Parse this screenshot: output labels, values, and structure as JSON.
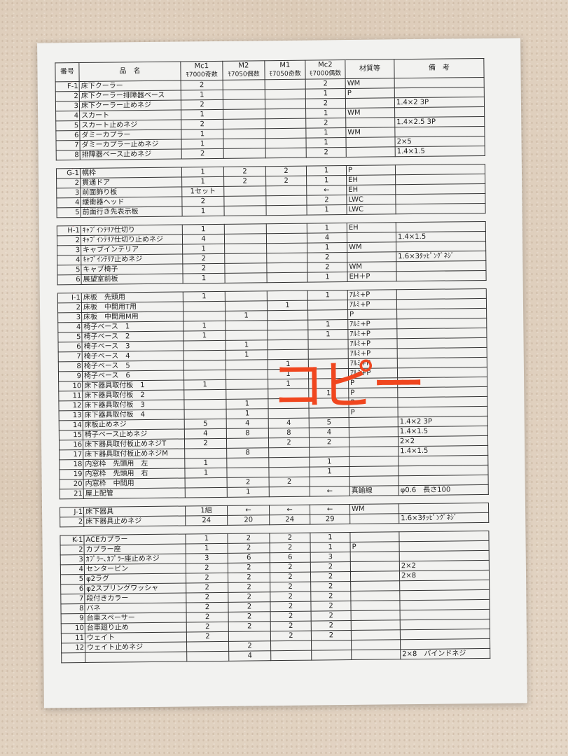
{
  "header": {
    "no": "番号",
    "name": "品　名",
    "cols": [
      {
        "a": "Mc1",
        "b": "ﾓ7000奇数"
      },
      {
        "a": "M2",
        "b": "ﾓ7050偶数"
      },
      {
        "a": "M1",
        "b": "ﾓ7050奇数"
      },
      {
        "a": "Mc2",
        "b": "ﾓ7000偶数"
      }
    ],
    "material": "材質等",
    "remarks": "備　考"
  },
  "sections": [
    {
      "rows": [
        [
          "F-1",
          "床下クーラー",
          "2",
          "",
          "",
          "2",
          "WM",
          ""
        ],
        [
          "2",
          "床下クーラー排障器ベース",
          "1",
          "",
          "",
          "1",
          "P",
          ""
        ],
        [
          "3",
          "床下クーラー止めネジ",
          "2",
          "",
          "",
          "2",
          "",
          "1.4×2 3P"
        ],
        [
          "4",
          "スカート",
          "1",
          "",
          "",
          "1",
          "WM",
          ""
        ],
        [
          "5",
          "スカート止めネジ",
          "2",
          "",
          "",
          "2",
          "",
          "1.4×2.5 3P"
        ],
        [
          "6",
          "ダミーカプラー",
          "1",
          "",
          "",
          "1",
          "WM",
          ""
        ],
        [
          "7",
          "ダミーカプラー止めネジ",
          "1",
          "",
          "",
          "1",
          "",
          "2×5"
        ],
        [
          "8",
          "排障器ベース止めネジ",
          "2",
          "",
          "",
          "2",
          "",
          "1.4×1.5"
        ]
      ]
    },
    {
      "rows": [
        [
          "G-1",
          "幌枠",
          "1",
          "2",
          "2",
          "1",
          "P",
          ""
        ],
        [
          "2",
          "貫通ドア",
          "1",
          "2",
          "2",
          "1",
          "EH",
          ""
        ],
        [
          "3",
          "前面飾り板",
          "1セット",
          "",
          "",
          "←",
          "EH",
          ""
        ],
        [
          "4",
          "緩衝器ヘッド",
          "2",
          "",
          "",
          "2",
          "LWC",
          ""
        ],
        [
          "5",
          "前面行き先表示板",
          "1",
          "",
          "",
          "1",
          "LWC",
          ""
        ]
      ]
    },
    {
      "rows": [
        [
          "H-1",
          "ｷｬﾌﾞｲﾝﾃﾘｱ仕切り",
          "1",
          "",
          "",
          "1",
          "EH",
          ""
        ],
        [
          "2",
          "ｷｬﾌﾞｲﾝﾃﾘｱ仕切り止めネジ",
          "4",
          "",
          "",
          "4",
          "",
          "1.4×1.5"
        ],
        [
          "3",
          "キャブインテリア",
          "1",
          "",
          "",
          "1",
          "WM",
          ""
        ],
        [
          "4",
          "ｷｬﾌﾞｲﾝﾃﾘｱ止めネジ",
          "2",
          "",
          "",
          "2",
          "",
          "1.6×3ﾀｯﾋﾟﾝｸﾞﾈｼﾞ"
        ],
        [
          "5",
          "キャブ椅子",
          "2",
          "",
          "",
          "2",
          "WM",
          ""
        ],
        [
          "6",
          "展望室前板",
          "1",
          "",
          "",
          "1",
          "EH＋P",
          ""
        ]
      ]
    },
    {
      "rows": [
        [
          "I-1",
          "床板　先頭用",
          "1",
          "",
          "",
          "1",
          "ｱﾙﾐ+P",
          ""
        ],
        [
          "2",
          "床板　中間用T用",
          "",
          "",
          "1",
          "",
          "ｱﾙﾐ+P",
          ""
        ],
        [
          "3",
          "床板　中間用M用",
          "",
          "1",
          "",
          "",
          "P",
          ""
        ],
        [
          "4",
          "椅子ベース　1",
          "1",
          "",
          "",
          "1",
          "ｱﾙﾐ+P",
          ""
        ],
        [
          "5",
          "椅子ベース　2",
          "1",
          "",
          "",
          "1",
          "ｱﾙﾐ+P",
          ""
        ],
        [
          "6",
          "椅子ベース　3",
          "",
          "1",
          "",
          "",
          "ｱﾙﾐ+P",
          ""
        ],
        [
          "7",
          "椅子ベース　4",
          "",
          "1",
          "",
          "",
          "ｱﾙﾐ+P",
          ""
        ],
        [
          "8",
          "椅子ベース　5",
          "",
          "",
          "1",
          "",
          "ｱﾙﾐ+P",
          ""
        ],
        [
          "9",
          "椅子ベース　6",
          "",
          "",
          "1",
          "",
          "ｱﾙﾐ+P",
          ""
        ],
        [
          "10",
          "床下器具取付板　1",
          "1",
          "",
          "1",
          "",
          "P",
          ""
        ],
        [
          "11",
          "床下器具取付板　2",
          "",
          "",
          "",
          "1",
          "P",
          ""
        ],
        [
          "12",
          "床下器具取付板　3",
          "",
          "1",
          "",
          "",
          "P",
          ""
        ],
        [
          "13",
          "床下器具取付板　4",
          "",
          "1",
          "",
          "",
          "P",
          ""
        ],
        [
          "14",
          "床板止めネジ",
          "5",
          "4",
          "4",
          "5",
          "",
          "1.4×2 3P"
        ],
        [
          "15",
          "椅子ベース止めネジ",
          "4",
          "8",
          "8",
          "4",
          "",
          "1.4×1.5"
        ],
        [
          "16",
          "床下器具取付板止めネジT",
          "2",
          "",
          "2",
          "2",
          "",
          "2×2"
        ],
        [
          "17",
          "床下器具取付板止めネジM",
          "",
          "8",
          "",
          "",
          "",
          "1.4×1.5"
        ],
        [
          "18",
          "内窓枠　先頭用　左",
          "1",
          "",
          "",
          "1",
          "",
          ""
        ],
        [
          "19",
          "内窓枠　先頭用　右",
          "1",
          "",
          "",
          "1",
          "",
          ""
        ],
        [
          "20",
          "内窓枠　中間用",
          "",
          "2",
          "2",
          "",
          "",
          ""
        ],
        [
          "21",
          "屋上配管",
          "",
          "1",
          "",
          "←",
          "真鍮線",
          "φ0.6　長さ100"
        ]
      ]
    },
    {
      "rows": [
        [
          "J-1",
          "床下器具",
          "1組",
          "←",
          "←",
          "←",
          "WM",
          ""
        ],
        [
          "2",
          "床下器具止めネジ",
          "24",
          "20",
          "24",
          "29",
          "",
          "1.6×3ﾀｯﾋﾟﾝｸﾞﾈｼﾞ"
        ]
      ]
    },
    {
      "rows": [
        [
          "K-1",
          "ACEカプラー",
          "1",
          "2",
          "2",
          "1",
          "",
          ""
        ],
        [
          "2",
          "カプラー座",
          "1",
          "2",
          "2",
          "1",
          "P",
          ""
        ],
        [
          "3",
          "ｶﾌﾟﾗｰ､ｶﾌﾟﾗｰ座止めネジ",
          "3",
          "6",
          "6",
          "3",
          "",
          ""
        ],
        [
          "4",
          "センターピン",
          "2",
          "2",
          "2",
          "2",
          "",
          "2×2"
        ],
        [
          "5",
          "φ2ラグ",
          "2",
          "2",
          "2",
          "2",
          "",
          "2×8"
        ],
        [
          "6",
          "φ2スプリングワッシャ",
          "2",
          "2",
          "2",
          "2",
          "",
          ""
        ],
        [
          "7",
          "段付きカラー",
          "2",
          "2",
          "2",
          "2",
          "",
          ""
        ],
        [
          "8",
          "バネ",
          "2",
          "2",
          "2",
          "2",
          "",
          ""
        ],
        [
          "9",
          "台車スペーサー",
          "2",
          "2",
          "2",
          "2",
          "",
          ""
        ],
        [
          "10",
          "台車廻り止め",
          "2",
          "2",
          "2",
          "2",
          "",
          ""
        ],
        [
          "11",
          "ウェイト",
          "2",
          "",
          "2",
          "2",
          "",
          ""
        ],
        [
          "12",
          "ウェイト止めネジ",
          "",
          "2",
          "",
          "",
          "",
          ""
        ],
        [
          "",
          "",
          "",
          "4",
          "",
          "",
          "",
          "2×8　バインドネジ"
        ]
      ]
    }
  ],
  "overlay": {
    "text": "コピー",
    "color": "#f0461e"
  },
  "circle_color": "#c0141c"
}
